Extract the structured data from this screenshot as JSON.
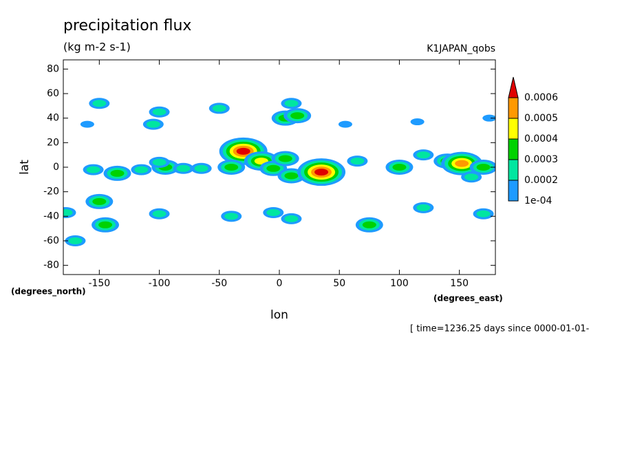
{
  "chart_data": {
    "type": "contour",
    "title": "precipitation flux",
    "subtitle": "(kg m-2 s-1)",
    "dataset": "K1JAPAN_qobs",
    "x_label": "lon",
    "y_label": "lat",
    "x_units": "(degrees_east)",
    "y_units": "(degrees_north)",
    "footer": "[ time=1236.25 days since 0000-01-01-",
    "xlim": [
      -180,
      180
    ],
    "ylim": [
      -87.5,
      87.5
    ],
    "xticks": [
      -150,
      -100,
      -50,
      0,
      50,
      100,
      150
    ],
    "yticks": [
      -80,
      -60,
      -40,
      -20,
      0,
      20,
      40,
      60,
      80
    ],
    "levels": [
      {
        "value": 0.0001,
        "label": "1e-04"
      },
      0.0002,
      0.0003,
      0.0004,
      0.0005,
      0.0006
    ],
    "colors": [
      "#1e9bff",
      "#00e6a0",
      "#00d200",
      "#ffff00",
      "#ff9900",
      "#e00000"
    ],
    "blobs": {
      "lon": [
        -150,
        -160,
        -100,
        -105,
        -50,
        10,
        5,
        15,
        -30,
        -15,
        -5,
        5,
        10,
        35,
        -135,
        -155,
        -95,
        -80,
        -65,
        -40,
        -115,
        -100,
        65,
        100,
        140,
        152,
        170,
        160,
        120,
        -150,
        -145,
        -100,
        -40,
        -5,
        10,
        75,
        120,
        170,
        -170,
        -178,
        55,
        115,
        175
      ],
      "lat": [
        52,
        35,
        45,
        35,
        48,
        52,
        40,
        42,
        13,
        5,
        -1,
        7,
        -7,
        -4,
        -5,
        -2,
        0,
        -1,
        -1,
        0,
        -2,
        4,
        5,
        0,
        5,
        3,
        0,
        -8,
        10,
        -28,
        -47,
        -38,
        -40,
        -37,
        -42,
        -47,
        -33,
        -38,
        -60,
        -37,
        35,
        37,
        40
      ],
      "values": [
        0.0002,
        0.00015,
        0.0002,
        0.0002,
        0.0002,
        0.0002,
        0.0003,
        0.0003,
        0.0006,
        0.0004,
        0.0003,
        0.0003,
        0.0003,
        0.0006,
        0.0003,
        0.0002,
        0.0003,
        0.0002,
        0.0002,
        0.0003,
        0.0002,
        0.0002,
        0.0002,
        0.0003,
        0.0003,
        0.0005,
        0.0003,
        0.0002,
        0.0002,
        0.0003,
        0.0003,
        0.0002,
        0.0002,
        0.0002,
        0.0002,
        0.0003,
        0.0002,
        0.0002,
        0.0002,
        0.0002,
        0.00015,
        0.00015,
        0.00015
      ]
    }
  }
}
